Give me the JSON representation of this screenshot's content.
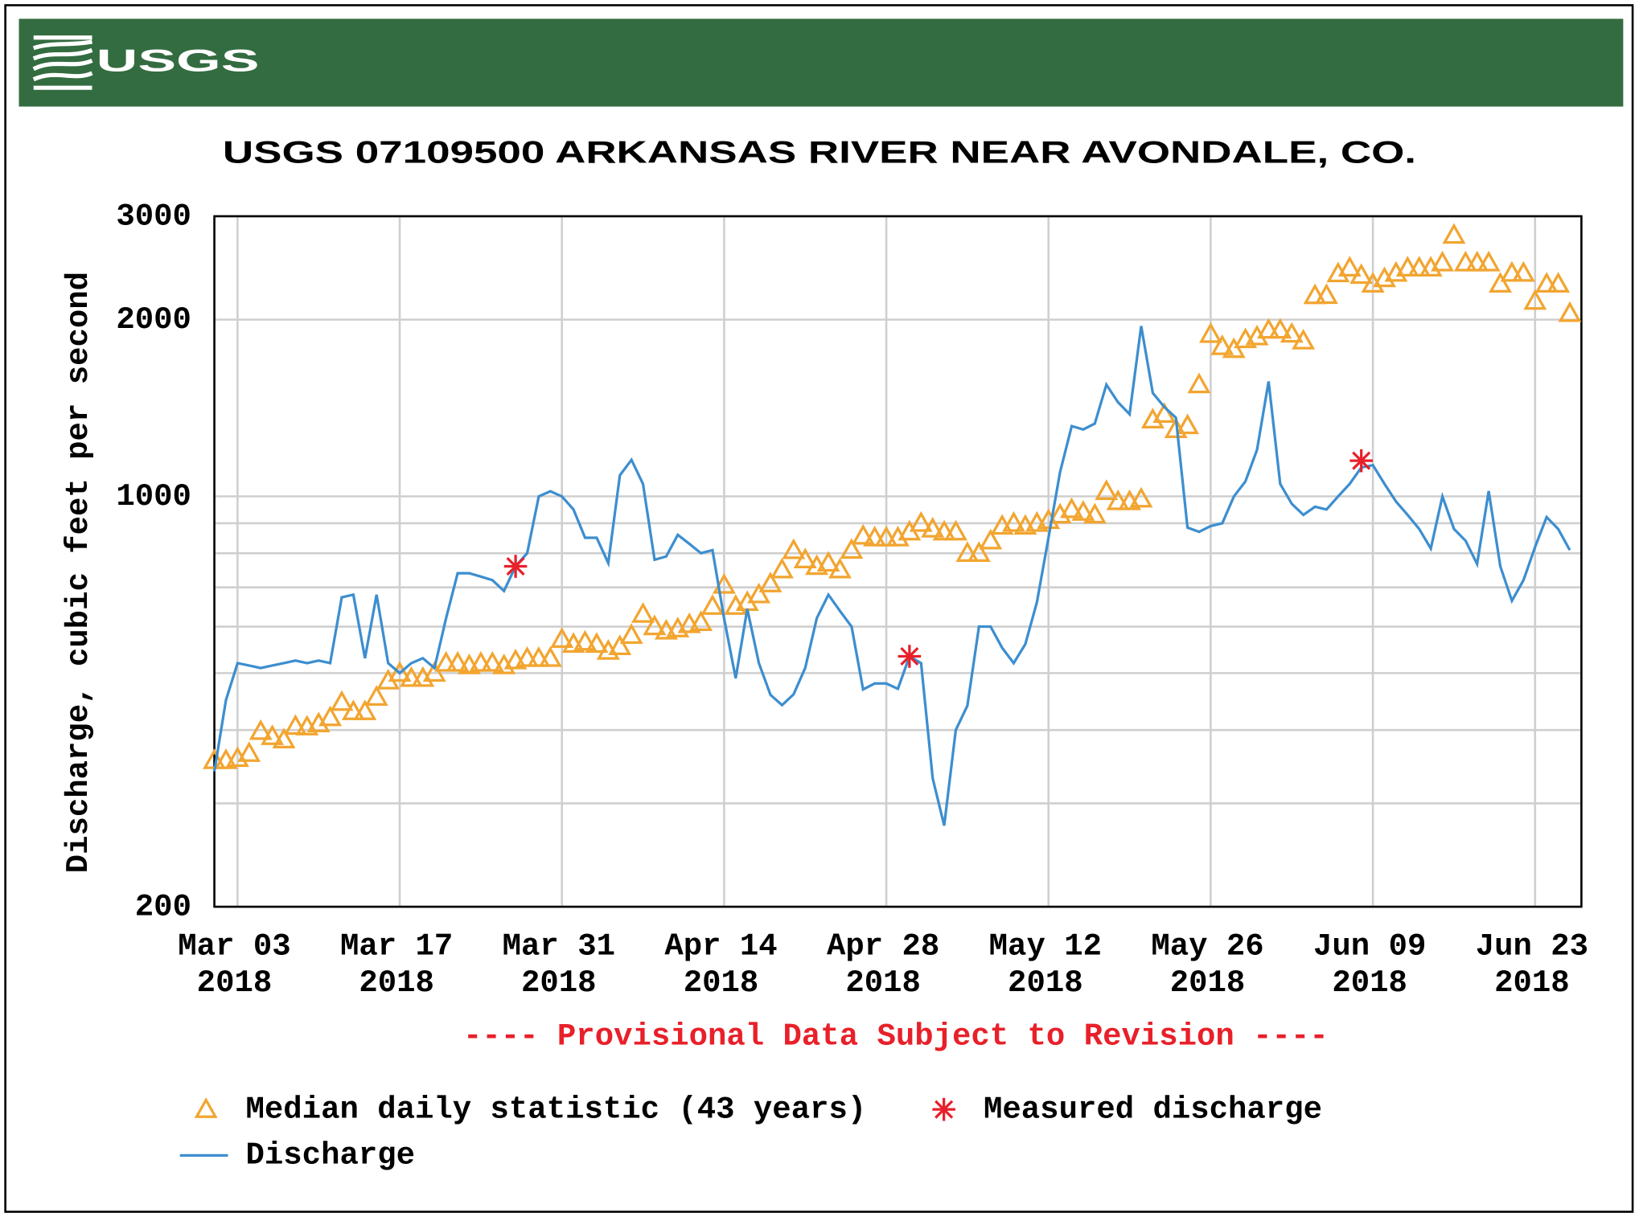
{
  "header": {
    "logo": "USGS"
  },
  "chart_data": {
    "type": "line",
    "title": "USGS 07109500 ARKANSAS RIVER NEAR AVONDALE, CO.",
    "y_label": "Discharge, cubic feet per second",
    "annotation": "---- Provisional Data Subject to Revision ----",
    "ylog": true,
    "grid": true,
    "ylim": [
      200,
      3000
    ],
    "yticks": [
      200,
      1000,
      2000,
      3000
    ],
    "minor_yticks": [
      300,
      400,
      500,
      600,
      700,
      800,
      900
    ],
    "xlim": [
      "2018-03-01",
      "2018-06-27"
    ],
    "xticks": [
      {
        "value": "2018-03-03",
        "label": [
          "Mar 03",
          "2018"
        ]
      },
      {
        "value": "2018-03-17",
        "label": [
          "Mar 17",
          "2018"
        ]
      },
      {
        "value": "2018-03-31",
        "label": [
          "Mar 31",
          "2018"
        ]
      },
      {
        "value": "2018-04-14",
        "label": [
          "Apr 14",
          "2018"
        ]
      },
      {
        "value": "2018-04-28",
        "label": [
          "Apr 28",
          "2018"
        ]
      },
      {
        "value": "2018-05-12",
        "label": [
          "May 12",
          "2018"
        ]
      },
      {
        "value": "2018-05-26",
        "label": [
          "May 26",
          "2018"
        ]
      },
      {
        "value": "2018-06-09",
        "label": [
          "Jun 09",
          "2018"
        ]
      },
      {
        "value": "2018-06-23",
        "label": [
          "Jun 23",
          "2018"
        ]
      }
    ],
    "x": [
      "2018-03-01",
      "2018-03-02",
      "2018-03-03",
      "2018-03-04",
      "2018-03-05",
      "2018-03-06",
      "2018-03-07",
      "2018-03-08",
      "2018-03-09",
      "2018-03-10",
      "2018-03-11",
      "2018-03-12",
      "2018-03-13",
      "2018-03-14",
      "2018-03-15",
      "2018-03-16",
      "2018-03-17",
      "2018-03-18",
      "2018-03-19",
      "2018-03-20",
      "2018-03-21",
      "2018-03-22",
      "2018-03-23",
      "2018-03-24",
      "2018-03-25",
      "2018-03-26",
      "2018-03-27",
      "2018-03-28",
      "2018-03-29",
      "2018-03-30",
      "2018-03-31",
      "2018-04-01",
      "2018-04-02",
      "2018-04-03",
      "2018-04-04",
      "2018-04-05",
      "2018-04-06",
      "2018-04-07",
      "2018-04-08",
      "2018-04-09",
      "2018-04-10",
      "2018-04-11",
      "2018-04-12",
      "2018-04-13",
      "2018-04-14",
      "2018-04-15",
      "2018-04-16",
      "2018-04-17",
      "2018-04-18",
      "2018-04-19",
      "2018-04-20",
      "2018-04-21",
      "2018-04-22",
      "2018-04-23",
      "2018-04-24",
      "2018-04-25",
      "2018-04-26",
      "2018-04-27",
      "2018-04-28",
      "2018-04-29",
      "2018-04-30",
      "2018-05-01",
      "2018-05-02",
      "2018-05-03",
      "2018-05-04",
      "2018-05-05",
      "2018-05-06",
      "2018-05-07",
      "2018-05-08",
      "2018-05-09",
      "2018-05-10",
      "2018-05-11",
      "2018-05-12",
      "2018-05-13",
      "2018-05-14",
      "2018-05-15",
      "2018-05-16",
      "2018-05-17",
      "2018-05-18",
      "2018-05-19",
      "2018-05-20",
      "2018-05-21",
      "2018-05-22",
      "2018-05-23",
      "2018-05-24",
      "2018-05-25",
      "2018-05-26",
      "2018-05-27",
      "2018-05-28",
      "2018-05-29",
      "2018-05-30",
      "2018-05-31",
      "2018-06-01",
      "2018-06-02",
      "2018-06-03",
      "2018-06-04",
      "2018-06-05",
      "2018-06-06",
      "2018-06-07",
      "2018-06-08",
      "2018-06-09",
      "2018-06-10",
      "2018-06-11",
      "2018-06-12",
      "2018-06-13",
      "2018-06-14",
      "2018-06-15",
      "2018-06-16",
      "2018-06-17",
      "2018-06-18",
      "2018-06-19",
      "2018-06-20",
      "2018-06-21",
      "2018-06-22",
      "2018-06-23",
      "2018-06-24",
      "2018-06-25",
      "2018-06-26"
    ],
    "series": [
      {
        "name": "Median daily statistic (43 years)",
        "color": "#f2a530",
        "style": "triangle",
        "values": [
          355,
          355,
          358,
          365,
          398,
          390,
          385,
          406,
          405,
          410,
          420,
          446,
          430,
          430,
          455,
          485,
          500,
          490,
          490,
          500,
          520,
          520,
          515,
          520,
          520,
          515,
          525,
          530,
          530,
          530,
          571,
          560,
          565,
          560,
          545,
          555,
          580,
          630,
          600,
          590,
          595,
          605,
          610,
          650,
          706,
          650,
          660,
          680,
          710,
          750,
          809,
          780,
          760,
          770,
          750,
          810,
          856,
          850,
          850,
          850,
          870,
          900,
          880,
          870,
          870,
          800,
          800,
          840,
          890,
          900,
          890,
          900,
          910,
          930,
          950,
          940,
          930,
          1020,
          980,
          980,
          990,
          1350,
          1380,
          1300,
          1320,
          1550,
          1888,
          1800,
          1780,
          1850,
          1870,
          1920,
          1920,
          1890,
          1840,
          2198,
          2200,
          2395,
          2450,
          2380,
          2300,
          2350,
          2400,
          2450,
          2450,
          2450,
          2500,
          2786,
          2500,
          2500,
          2500,
          2300,
          2400,
          2400,
          2150,
          2300,
          2300,
          2050
        ]
      },
      {
        "name": "Measured discharge",
        "color": "#e8202a",
        "style": "asterisk",
        "x": [
          "2018-03-27",
          "2018-04-30",
          "2018-06-08"
        ],
        "values": [
          760,
          534,
          1150
        ]
      },
      {
        "name": "Discharge",
        "color": "#3d8ecf",
        "style": "line",
        "values": [
          340,
          450,
          520,
          515,
          510,
          515,
          520,
          525,
          520,
          525,
          520,
          673,
          680,
          530,
          680,
          520,
          500,
          520,
          530,
          510,
          620,
          740,
          740,
          730,
          720,
          690,
          760,
          800,
          1000,
          1020,
          1000,
          950,
          850,
          850,
          770,
          1086,
          1154,
          1050,
          780,
          790,
          860,
          830,
          800,
          810,
          620,
          490,
          643,
          520,
          459,
          441,
          460,
          510,
          620,
          680,
          638,
          600,
          469,
          480,
          480,
          470,
          534,
          520,
          331,
          275,
          400,
          440,
          600,
          600,
          552,
          520,
          560,
          660,
          850,
          1100,
          1317,
          1300,
          1330,
          1550,
          1447,
          1380,
          1950,
          1500,
          1420,
          1361,
          885,
          870,
          890,
          900,
          1000,
          1060,
          1200,
          1570,
          1050,
          971,
          930,
          960,
          950,
          1000,
          1050,
          1120,
          1130,
          1050,
          980,
          930,
          880,
          815,
          1000,
          880,
          840,
          767,
          1021,
          760,
          664,
          720,
          820,
          922,
          880,
          810
        ]
      }
    ]
  }
}
